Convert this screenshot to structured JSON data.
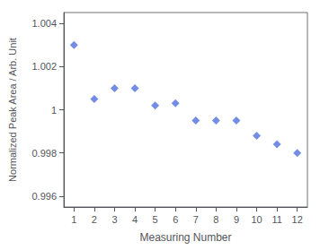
{
  "chart_data": {
    "type": "scatter",
    "xlabel": "Measuring Number",
    "ylabel": "Normalized Peak Area / Arb. Unit",
    "x": [
      1,
      2,
      3,
      4,
      5,
      6,
      7,
      8,
      9,
      10,
      11,
      12
    ],
    "values": [
      1.003,
      1.0005,
      1.001,
      1.001,
      1.0002,
      1.0003,
      0.9995,
      0.9995,
      0.9995,
      0.9988,
      0.9984,
      0.998
    ],
    "xlim": [
      0.5,
      12.5
    ],
    "ylim": [
      0.9955,
      1.0045
    ],
    "xticks": [
      1,
      2,
      3,
      4,
      5,
      6,
      7,
      8,
      9,
      10,
      11,
      12
    ],
    "yticks": [
      0.996,
      0.998,
      1,
      1.002,
      1.004
    ],
    "marker": "diamond",
    "grid": false
  }
}
